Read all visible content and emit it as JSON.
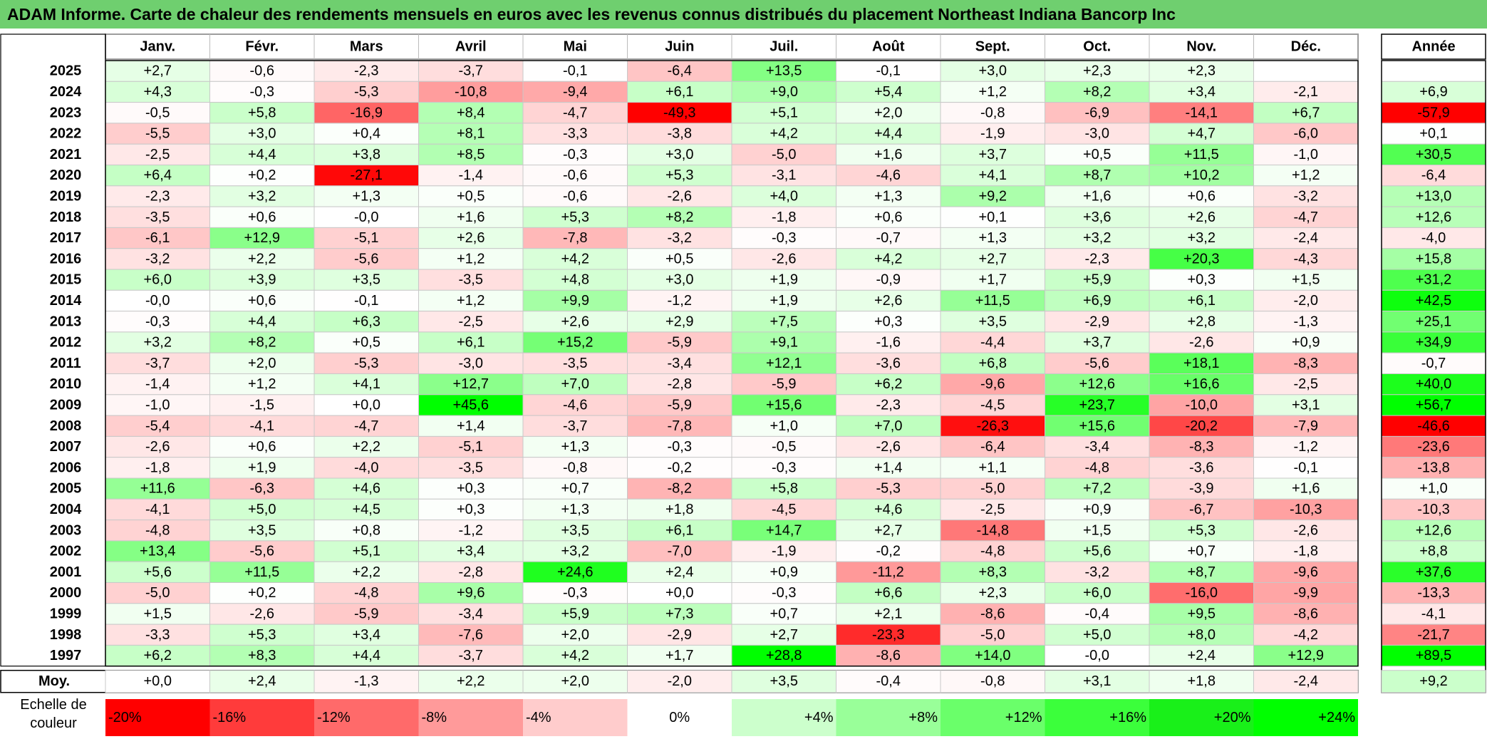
{
  "title": "ADAM Informe. Carte de chaleur des rendements mensuels en euros avec les revenus connus distribués du placement Northeast Indiana Bancorp Inc",
  "chart_data": {
    "type": "heatmap",
    "title": "ADAM Informe. Carte de chaleur des rendements mensuels en euros avec les revenus connus distribués du placement Northeast Indiana Bancorp Inc",
    "columns": [
      "Janv.",
      "Févr.",
      "Mars",
      "Avril",
      "Mai",
      "Juin",
      "Juil.",
      "Août",
      "Sept.",
      "Oct.",
      "Nov.",
      "Déc."
    ],
    "year_column": "Année",
    "rows": [
      {
        "year": "2025",
        "values": [
          "+2,7",
          "-0,6",
          "-2,3",
          "-3,7",
          "-0,1",
          "-6,4",
          "+13,5",
          "-0,1",
          "+3,0",
          "+2,3",
          "+2,3",
          ""
        ],
        "annual": ""
      },
      {
        "year": "2024",
        "values": [
          "+4,3",
          "-0,3",
          "-5,3",
          "-10,8",
          "-9,4",
          "+6,1",
          "+9,0",
          "+5,4",
          "+1,2",
          "+8,2",
          "+3,4",
          "-2,1"
        ],
        "annual": "+6,9"
      },
      {
        "year": "2023",
        "values": [
          "-0,5",
          "+5,8",
          "-16,9",
          "+8,4",
          "-4,7",
          "-49,3",
          "+5,1",
          "+2,0",
          "-0,8",
          "-6,9",
          "-14,1",
          "+6,7"
        ],
        "annual": "-57,9"
      },
      {
        "year": "2022",
        "values": [
          "-5,5",
          "+3,0",
          "+0,4",
          "+8,1",
          "-3,3",
          "-3,8",
          "+4,2",
          "+4,4",
          "-1,9",
          "-3,0",
          "+4,7",
          "-6,0"
        ],
        "annual": "+0,1"
      },
      {
        "year": "2021",
        "values": [
          "-2,5",
          "+4,4",
          "+3,8",
          "+8,5",
          "-0,3",
          "+3,0",
          "-5,0",
          "+1,6",
          "+3,7",
          "+0,5",
          "+11,5",
          "-1,0"
        ],
        "annual": "+30,5"
      },
      {
        "year": "2020",
        "values": [
          "+6,4",
          "+0,2",
          "-27,1",
          "-1,4",
          "-0,6",
          "+5,3",
          "-3,1",
          "-4,6",
          "+4,1",
          "+8,7",
          "+10,2",
          "+1,2"
        ],
        "annual": "-6,4"
      },
      {
        "year": "2019",
        "values": [
          "-2,3",
          "+3,2",
          "+1,3",
          "+0,5",
          "-0,6",
          "-2,6",
          "+4,0",
          "+1,3",
          "+9,2",
          "+1,6",
          "+0,6",
          "-3,2"
        ],
        "annual": "+13,0"
      },
      {
        "year": "2018",
        "values": [
          "-3,5",
          "+0,6",
          "-0,0",
          "+1,6",
          "+5,3",
          "+8,2",
          "-1,8",
          "+0,6",
          "+0,1",
          "+3,6",
          "+2,6",
          "-4,7"
        ],
        "annual": "+12,6"
      },
      {
        "year": "2017",
        "values": [
          "-6,1",
          "+12,9",
          "-5,1",
          "+2,6",
          "-7,8",
          "-3,2",
          "-0,3",
          "-0,7",
          "+1,3",
          "+3,2",
          "+3,2",
          "-2,4"
        ],
        "annual": "-4,0"
      },
      {
        "year": "2016",
        "values": [
          "-3,2",
          "+2,2",
          "-5,6",
          "+1,2",
          "+4,2",
          "+0,5",
          "-2,6",
          "+4,2",
          "+2,7",
          "-2,3",
          "+20,3",
          "-4,3"
        ],
        "annual": "+15,8"
      },
      {
        "year": "2015",
        "values": [
          "+6,0",
          "+3,9",
          "+3,5",
          "-3,5",
          "+4,8",
          "+3,0",
          "+1,9",
          "-0,9",
          "+1,7",
          "+5,9",
          "+0,3",
          "+1,5"
        ],
        "annual": "+31,2"
      },
      {
        "year": "2014",
        "values": [
          "-0,0",
          "+0,6",
          "-0,1",
          "+1,2",
          "+9,9",
          "-1,2",
          "+1,9",
          "+2,6",
          "+11,5",
          "+6,9",
          "+6,1",
          "-2,0"
        ],
        "annual": "+42,5"
      },
      {
        "year": "2013",
        "values": [
          "-0,3",
          "+4,4",
          "+6,3",
          "-2,5",
          "+2,6",
          "+2,9",
          "+7,5",
          "+0,3",
          "+3,5",
          "-2,9",
          "+2,8",
          "-1,3"
        ],
        "annual": "+25,1"
      },
      {
        "year": "2012",
        "values": [
          "+3,2",
          "+8,2",
          "+0,5",
          "+6,1",
          "+15,2",
          "-5,9",
          "+9,1",
          "-1,6",
          "-4,4",
          "+3,7",
          "-2,6",
          "+0,9"
        ],
        "annual": "+34,9"
      },
      {
        "year": "2011",
        "values": [
          "-3,7",
          "+2,0",
          "-5,3",
          "-3,0",
          "-3,5",
          "-3,4",
          "+12,1",
          "-3,6",
          "+6,8",
          "-5,6",
          "+18,1",
          "-8,3"
        ],
        "annual": "-0,7"
      },
      {
        "year": "2010",
        "values": [
          "-1,4",
          "+1,2",
          "+4,1",
          "+12,7",
          "+7,0",
          "-2,8",
          "-5,9",
          "+6,2",
          "-9,6",
          "+12,6",
          "+16,6",
          "-2,5"
        ],
        "annual": "+40,0"
      },
      {
        "year": "2009",
        "values": [
          "-1,0",
          "-1,5",
          "+0,0",
          "+45,6",
          "-4,6",
          "-5,9",
          "+15,6",
          "-2,3",
          "-4,5",
          "+23,7",
          "-10,0",
          "+3,1"
        ],
        "annual": "+56,7"
      },
      {
        "year": "2008",
        "values": [
          "-5,4",
          "-4,1",
          "-4,7",
          "+1,4",
          "-3,7",
          "-7,8",
          "+1,0",
          "+7,0",
          "-26,3",
          "+15,6",
          "-20,2",
          "-7,9"
        ],
        "annual": "-46,6"
      },
      {
        "year": "2007",
        "values": [
          "-2,6",
          "+0,6",
          "+2,2",
          "-5,1",
          "+1,3",
          "-0,3",
          "-0,5",
          "-2,6",
          "-6,4",
          "-3,4",
          "-8,3",
          "-1,2"
        ],
        "annual": "-23,6"
      },
      {
        "year": "2006",
        "values": [
          "-1,8",
          "+1,9",
          "-4,0",
          "-3,5",
          "-0,8",
          "-0,2",
          "-0,3",
          "+1,4",
          "+1,1",
          "-4,8",
          "-3,6",
          "-0,1"
        ],
        "annual": "-13,8"
      },
      {
        "year": "2005",
        "values": [
          "+11,6",
          "-6,3",
          "+4,6",
          "+0,3",
          "+0,7",
          "-8,2",
          "+5,8",
          "-5,3",
          "-5,0",
          "+7,2",
          "-3,9",
          "+1,6"
        ],
        "annual": "+1,0"
      },
      {
        "year": "2004",
        "values": [
          "-4,1",
          "+5,0",
          "+4,5",
          "+0,3",
          "+1,3",
          "+1,8",
          "-4,5",
          "+4,6",
          "-2,5",
          "+0,9",
          "-6,7",
          "-10,3"
        ],
        "annual": "-10,3"
      },
      {
        "year": "2003",
        "values": [
          "-4,8",
          "+3,5",
          "+0,8",
          "-1,2",
          "+3,5",
          "+6,1",
          "+14,7",
          "+2,7",
          "-14,8",
          "+1,5",
          "+5,3",
          "-2,6"
        ],
        "annual": "+12,6"
      },
      {
        "year": "2002",
        "values": [
          "+13,4",
          "-5,6",
          "+5,1",
          "+3,4",
          "+3,2",
          "-7,0",
          "-1,9",
          "-0,2",
          "-4,8",
          "+5,6",
          "+0,7",
          "-1,8"
        ],
        "annual": "+8,8"
      },
      {
        "year": "2001",
        "values": [
          "+5,6",
          "+11,5",
          "+2,2",
          "-2,8",
          "+24,6",
          "+2,4",
          "+0,9",
          "-11,2",
          "+8,3",
          "-3,2",
          "+8,7",
          "-9,6"
        ],
        "annual": "+37,6"
      },
      {
        "year": "2000",
        "values": [
          "-5,0",
          "+0,2",
          "-4,8",
          "+9,6",
          "-0,3",
          "+0,0",
          "-0,3",
          "+6,6",
          "+2,3",
          "+6,0",
          "-16,0",
          "-9,9"
        ],
        "annual": "-13,3"
      },
      {
        "year": "1999",
        "values": [
          "+1,5",
          "-2,6",
          "-5,9",
          "-3,4",
          "+5,9",
          "+7,3",
          "+0,7",
          "+2,1",
          "-8,6",
          "-0,4",
          "+9,5",
          "-8,6"
        ],
        "annual": "-4,1"
      },
      {
        "year": "1998",
        "values": [
          "-3,3",
          "+5,3",
          "+3,4",
          "-7,6",
          "+2,0",
          "-2,9",
          "+2,7",
          "-23,3",
          "-5,0",
          "+5,0",
          "+8,0",
          "-4,2"
        ],
        "annual": "-21,7"
      },
      {
        "year": "1997",
        "values": [
          "+6,2",
          "+8,3",
          "+4,4",
          "-3,7",
          "+4,2",
          "+1,7",
          "+28,8",
          "-8,6",
          "+14,0",
          "-0,0",
          "+2,4",
          "+12,9"
        ],
        "annual": "+89,5"
      }
    ],
    "average": {
      "label": "Moy.",
      "values": [
        "+0,0",
        "+2,4",
        "-1,3",
        "+2,2",
        "+2,0",
        "-2,0",
        "+3,5",
        "-0,4",
        "-0,8",
        "+3,1",
        "+1,8",
        "-2,4"
      ],
      "annual": "+9,2"
    },
    "color_scale": {
      "label": "Echelle de couleur",
      "steps": [
        "-20%",
        "-16%",
        "-12%",
        "-8%",
        "-4%",
        "0%",
        "+4%",
        "+8%",
        "+12%",
        "+16%",
        "+20%",
        "+24%"
      ],
      "colors": [
        "#ff0000",
        "#ff3b3b",
        "#ff6a6a",
        "#ff9a9a",
        "#ffcccc",
        "#ffffff",
        "#ccffcc",
        "#99ff99",
        "#6aff6a",
        "#3bff3b",
        "#19f019",
        "#00ff00"
      ],
      "negative_max_color": "#ff0000",
      "positive_max_color": "#00ff00"
    }
  }
}
